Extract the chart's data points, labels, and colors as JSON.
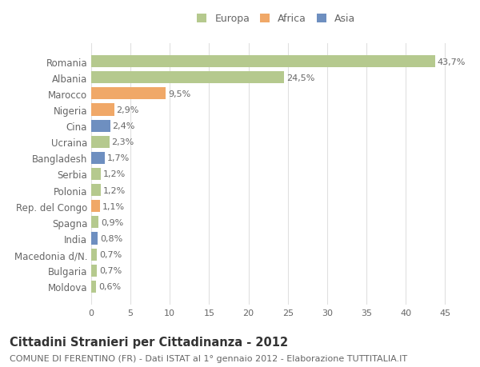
{
  "categories": [
    "Romania",
    "Albania",
    "Marocco",
    "Nigeria",
    "Cina",
    "Ucraina",
    "Bangladesh",
    "Serbia",
    "Polonia",
    "Rep. del Congo",
    "Spagna",
    "India",
    "Macedonia d/N.",
    "Bulgaria",
    "Moldova"
  ],
  "values": [
    43.7,
    24.5,
    9.5,
    2.9,
    2.4,
    2.3,
    1.7,
    1.2,
    1.2,
    1.1,
    0.9,
    0.8,
    0.7,
    0.7,
    0.6
  ],
  "labels": [
    "43,7%",
    "24,5%",
    "9,5%",
    "2,9%",
    "2,4%",
    "2,3%",
    "1,7%",
    "1,2%",
    "1,2%",
    "1,1%",
    "0,9%",
    "0,8%",
    "0,7%",
    "0,7%",
    "0,6%"
  ],
  "colors": [
    "#b5c98e",
    "#b5c98e",
    "#f0a868",
    "#f0a868",
    "#6e8fc0",
    "#b5c98e",
    "#6e8fc0",
    "#b5c98e",
    "#b5c98e",
    "#f0a868",
    "#b5c98e",
    "#6e8fc0",
    "#b5c98e",
    "#b5c98e",
    "#b5c98e"
  ],
  "legend_labels": [
    "Europa",
    "Africa",
    "Asia"
  ],
  "legend_colors": [
    "#b5c98e",
    "#f0a868",
    "#6e8fc0"
  ],
  "xlim": [
    0,
    47
  ],
  "xticks": [
    0,
    5,
    10,
    15,
    20,
    25,
    30,
    35,
    40,
    45
  ],
  "title": "Cittadini Stranieri per Cittadinanza - 2012",
  "subtitle": "COMUNE DI FERENTINO (FR) - Dati ISTAT al 1° gennaio 2012 - Elaborazione TUTTITALIA.IT",
  "bg_color": "#ffffff",
  "bar_height": 0.75,
  "label_fontsize": 8,
  "ytick_fontsize": 8.5,
  "xtick_fontsize": 8,
  "title_fontsize": 10.5,
  "subtitle_fontsize": 8
}
